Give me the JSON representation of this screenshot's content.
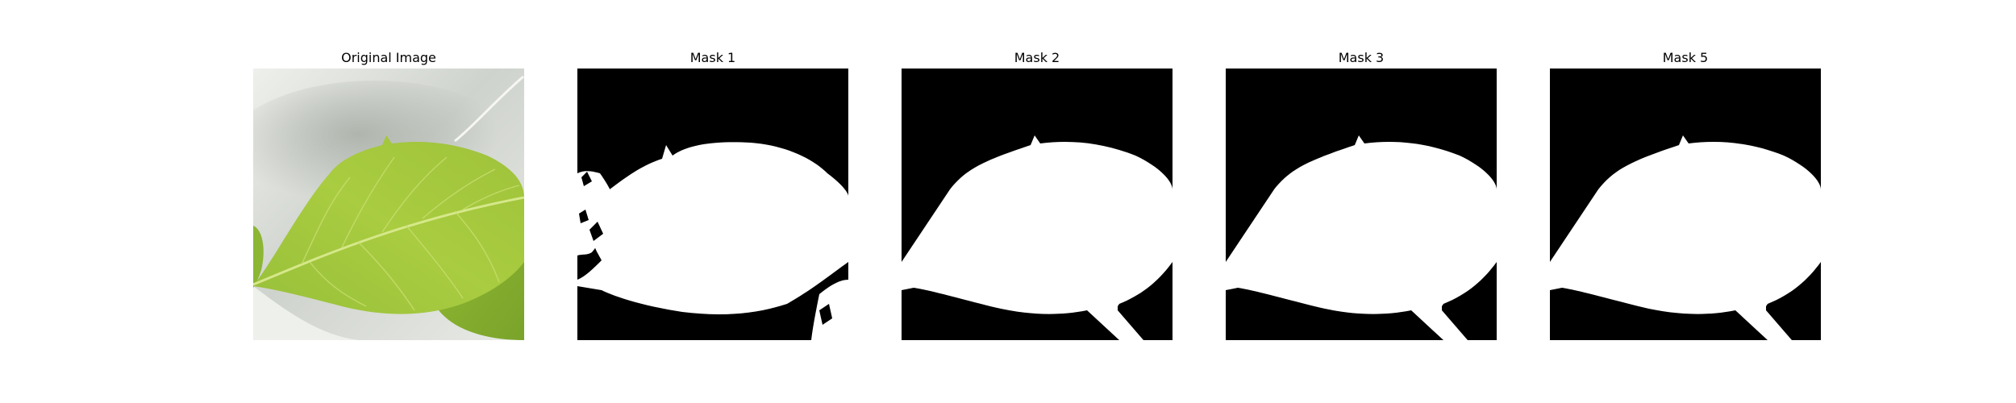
{
  "figure": {
    "panels": [
      {
        "title": "Original Image",
        "kind": "photo"
      },
      {
        "title": "Mask 1",
        "kind": "mask",
        "variant": "noisy"
      },
      {
        "title": "Mask 2",
        "kind": "mask",
        "variant": "clean"
      },
      {
        "title": "Mask 3",
        "kind": "mask",
        "variant": "clean"
      },
      {
        "title": "Mask 5",
        "kind": "mask",
        "variant": "clean"
      }
    ],
    "colors": {
      "background": "#ffffff",
      "mask_background": "#000000",
      "mask_foreground": "#ffffff",
      "leaf_main": "#a6c93c",
      "leaf_dark": "#7fa52a",
      "leaf_light": "#c4dc5e",
      "backdrop_light": "#e3e6e0",
      "backdrop_shadow": "#b9bdb7"
    }
  }
}
